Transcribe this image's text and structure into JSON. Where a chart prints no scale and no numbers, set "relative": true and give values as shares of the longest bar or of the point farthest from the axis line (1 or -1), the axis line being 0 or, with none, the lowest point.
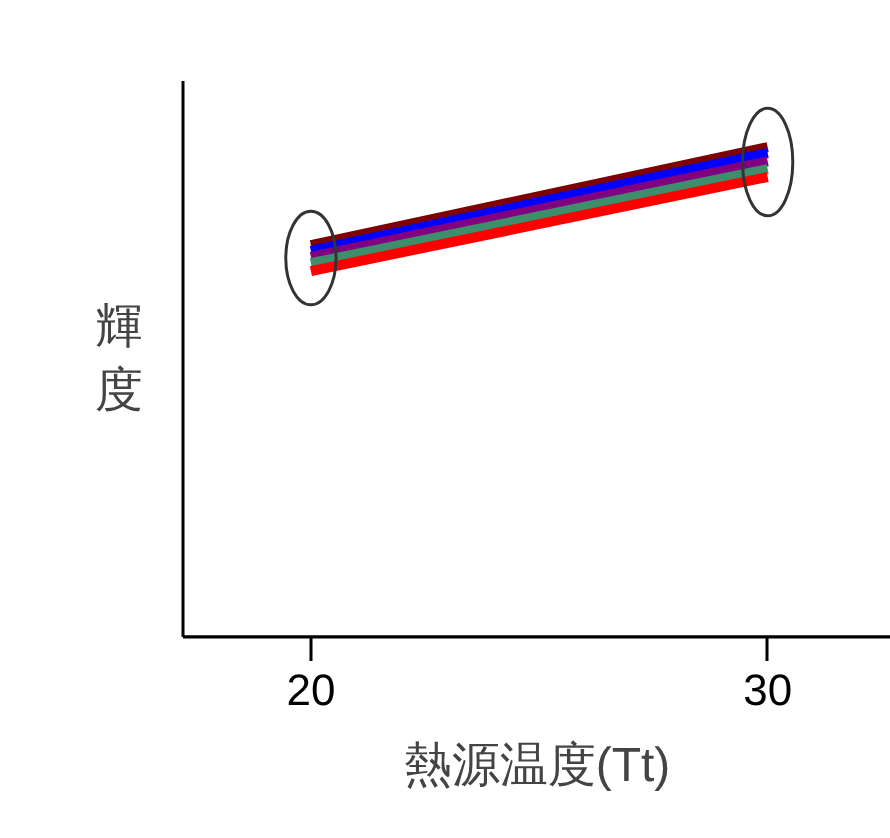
{
  "chart_data": {
    "type": "line",
    "xlabel": "熱源温度(Tt)",
    "ylabel": "輝度",
    "relative": true,
    "x": [
      20,
      30
    ],
    "xlim": [
      17.2,
      32.7
    ],
    "xticks": [
      20,
      30
    ],
    "tick_labels": "x",
    "grid": false,
    "marker": "none",
    "line_style": "solid",
    "series": [
      {
        "color": "#7f0000",
        "values": [
          0.8,
          1.0
        ]
      },
      {
        "color": "#0000ff",
        "values": [
          0.788,
          0.988
        ]
      },
      {
        "color": "#800080",
        "values": [
          0.776,
          0.971
        ]
      },
      {
        "color": "#3c8f6a",
        "values": [
          0.763,
          0.955
        ]
      },
      {
        "color": "#ff0000",
        "values": [
          0.747,
          0.939
        ]
      }
    ]
  }
}
